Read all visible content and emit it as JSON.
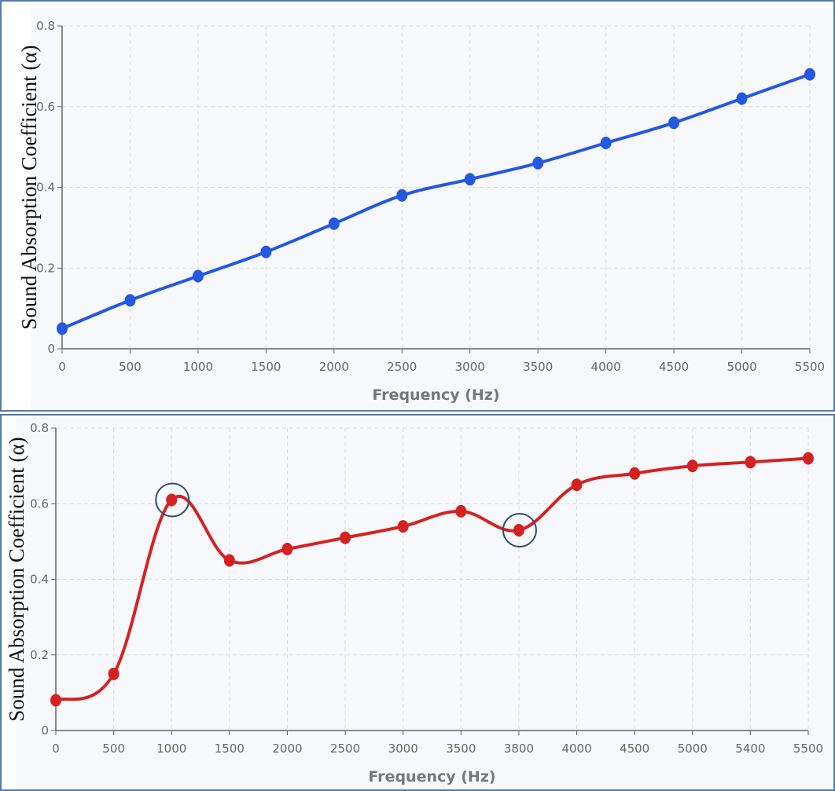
{
  "chart_data": [
    {
      "type": "line",
      "title": "",
      "xlabel": "Frequency (Hz)",
      "ylabel": "Sound Absorption Coefficient (α)",
      "x": [
        0,
        500,
        1000,
        1500,
        2000,
        2500,
        3000,
        3500,
        4000,
        4500,
        5000,
        5500
      ],
      "x_tick_labels": [
        "0",
        "500",
        "1000",
        "1500",
        "2000",
        "2500",
        "3000",
        "3500",
        "4000",
        "4500",
        "5000",
        "5500"
      ],
      "values": [
        0.05,
        0.12,
        0.18,
        0.24,
        0.31,
        0.38,
        0.42,
        0.46,
        0.51,
        0.56,
        0.62,
        0.68
      ],
      "y_tick_labels": [
        "0",
        "0.2",
        "0.4",
        "0.6",
        "0.8"
      ],
      "ylim": [
        0,
        0.8
      ],
      "grid": true,
      "color": "#2458e0"
    },
    {
      "type": "line",
      "title": "",
      "xlabel": "Frequency (Hz)",
      "ylabel": "Sound Absorption Coefficient (α)",
      "x": [
        0,
        500,
        1000,
        1500,
        2000,
        2500,
        3000,
        3500,
        3800,
        4000,
        4500,
        5000,
        5400,
        5500
      ],
      "x_tick_labels": [
        "0",
        "500",
        "1000",
        "1500",
        "2000",
        "2500",
        "3000",
        "3500",
        "3800",
        "4000",
        "4500",
        "5000",
        "5400",
        "5500"
      ],
      "values": [
        0.08,
        0.15,
        0.61,
        0.45,
        0.48,
        0.51,
        0.54,
        0.58,
        0.53,
        0.65,
        0.68,
        0.7,
        0.71,
        0.72
      ],
      "y_tick_labels": [
        "0",
        "0.2",
        "0.4",
        "0.6",
        "0.8"
      ],
      "ylim": [
        0,
        0.8
      ],
      "grid": true,
      "color": "#d42222",
      "highlighted_x": [
        "1000",
        "3800"
      ],
      "highlight_color": "#2c4f70"
    }
  ]
}
